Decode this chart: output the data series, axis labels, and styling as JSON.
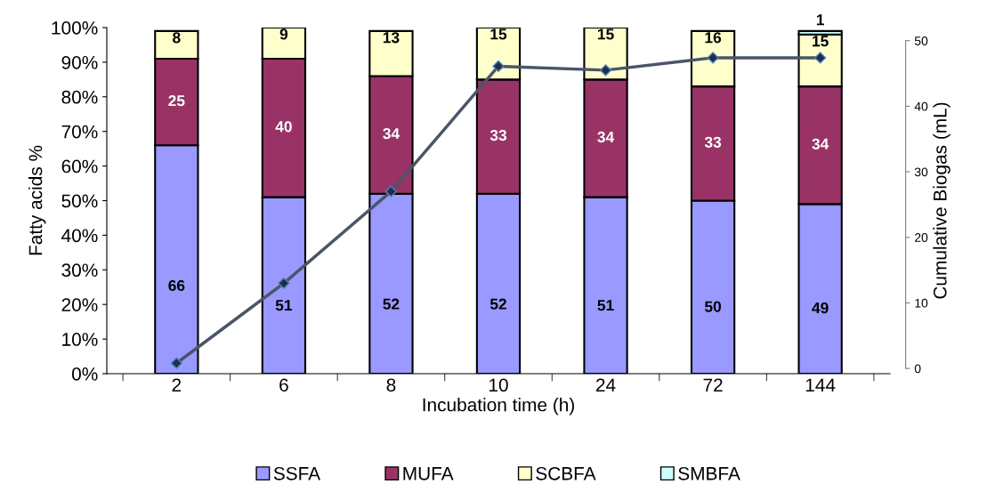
{
  "chart_data": {
    "type": "bar",
    "stacked": true,
    "xlabel": "Incubation time (h)",
    "ylabel": "Fatty acids %",
    "y2label": "Cumulative Biogas (mL)",
    "categories": [
      "2",
      "6",
      "8",
      "10",
      "24",
      "72",
      "144"
    ],
    "series": [
      {
        "name": "SSFA",
        "color": "#9999ff",
        "values": [
          66,
          51,
          52,
          52,
          51,
          50,
          49
        ],
        "value_labels": [
          "66",
          "51",
          "52",
          "52",
          "51",
          "50",
          "49"
        ]
      },
      {
        "name": "MUFA",
        "color": "#993366",
        "values": [
          25,
          40,
          34,
          33,
          34,
          33,
          34
        ],
        "value_labels": [
          "25",
          "40",
          "34",
          "33",
          "34",
          "33",
          "34"
        ]
      },
      {
        "name": "SCBFA",
        "color": "#ffffcc",
        "values": [
          8,
          9,
          13,
          15,
          15,
          16,
          15
        ],
        "value_labels": [
          "8",
          "9",
          "13",
          "15",
          "15",
          "16",
          "15"
        ]
      },
      {
        "name": "SMBFA",
        "color": "#ccffff",
        "values": [
          null,
          null,
          null,
          null,
          null,
          null,
          1
        ],
        "value_labels": [
          null,
          null,
          null,
          null,
          null,
          null,
          "1"
        ]
      },
      {
        "type": "line",
        "axis": "y2",
        "color": "#4a5568",
        "marker": "diamond",
        "values": [
          0.8,
          13.0,
          27.0,
          46.1,
          45.5,
          47.4,
          47.4
        ]
      }
    ],
    "ylim": [
      0,
      100
    ],
    "yticks": [
      {
        "value": 0,
        "label": "0%"
      },
      {
        "value": 10,
        "label": "10%"
      },
      {
        "value": 20,
        "label": "20%"
      },
      {
        "value": 30,
        "label": "30%"
      },
      {
        "value": 40,
        "label": "40%"
      },
      {
        "value": 50,
        "label": "50%"
      },
      {
        "value": 60,
        "label": "60%"
      },
      {
        "value": 70,
        "label": "70%"
      },
      {
        "value": 80,
        "label": "80%"
      },
      {
        "value": 90,
        "label": "90%"
      },
      {
        "value": 100,
        "label": "100%"
      }
    ],
    "y2lim": [
      -0.8,
      52.0
    ],
    "y2ticks": [
      0,
      10,
      20,
      30,
      40,
      50
    ],
    "grid": false,
    "legend": "bottom"
  }
}
